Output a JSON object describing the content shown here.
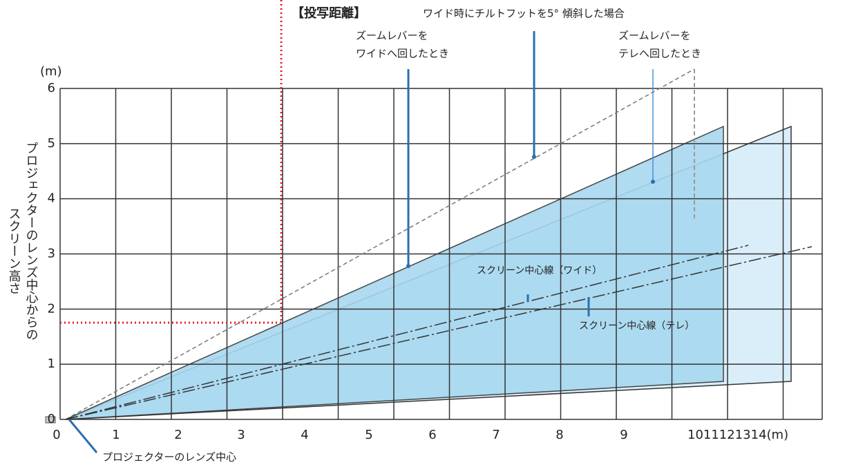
{
  "title": "【投写距離】",
  "unit_y": "(m)",
  "y_label": [
    "プロジェクターのレンズ中心からの",
    "スクリーン高さ"
  ],
  "y_ticks": [
    "0",
    "1",
    "2",
    "3",
    "4",
    "5",
    "6"
  ],
  "x_ticks": [
    "0",
    "1",
    "2",
    "3",
    "4",
    "5",
    "6",
    "7",
    "8",
    "9",
    "1011121314(m)"
  ],
  "annotations": {
    "tilt": "ワイド時にチルトフットを5° 傾斜した場合",
    "zoom_wide": [
      "ズームレバーを",
      "ワイドへ回したとき"
    ],
    "zoom_tele": [
      "ズームレバーを",
      "テレへ回したとき"
    ],
    "center_wide": "スクリーン中心線（ワイド）",
    "center_tele": "スクリーン中心線（テレ）",
    "lens_center": "プロジェクターのレンズ中心"
  }
}
